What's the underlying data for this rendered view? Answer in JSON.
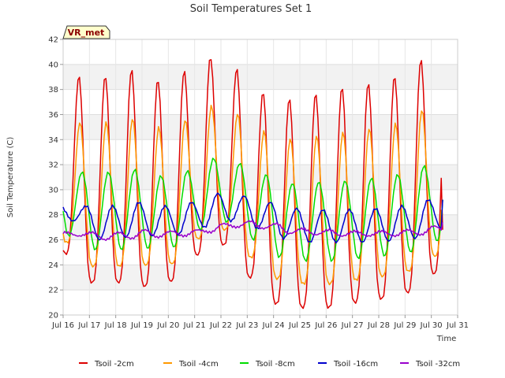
{
  "chart_data": {
    "type": "line",
    "title": "Soil Temperatures Set 1",
    "xlabel": "Time",
    "ylabel": "Soil Temperature (C)",
    "badge": "VR_met",
    "xlim": [
      16,
      31
    ],
    "ylim": [
      20,
      42
    ],
    "x_ticks": [
      "Jul 16",
      "Jul 17",
      "Jul 18",
      "Jul 19",
      "Jul 20",
      "Jul 21",
      "Jul 22",
      "Jul 23",
      "Jul 24",
      "Jul 25",
      "Jul 26",
      "Jul 27",
      "Jul 28",
      "Jul 29",
      "Jul 30",
      "Jul 31"
    ],
    "y_ticks": [
      20,
      22,
      24,
      26,
      28,
      30,
      32,
      34,
      36,
      38,
      40,
      42
    ],
    "grid": true,
    "legend_position": "bottom",
    "x_start_day": 16,
    "x_end_day": 30.42,
    "x_step_days": 0.0625,
    "peaks_at_day_fraction": 0.6,
    "series": [
      {
        "name": "Tsoil -2cm",
        "color": "#dd0000",
        "depth_shape": "sharp",
        "phase_lag_days": 0.0,
        "daily_min": [
          24.9,
          22.6,
          22.6,
          22.3,
          22.7,
          24.8,
          25.6,
          23.0,
          20.9,
          20.6,
          20.6,
          21.0,
          21.3,
          21.8,
          23.3
        ],
        "daily_max": [
          null,
          39.1,
          39.6,
          38.8,
          39.5,
          40.6,
          39.7,
          37.8,
          37.3,
          37.7,
          38.2,
          38.5,
          39.1,
          40.4,
          41.7
        ],
        "end_value": 26.8
      },
      {
        "name": "Tsoil -4cm",
        "color": "#ff9900",
        "depth_shape": "sharp",
        "phase_lag_days": 0.04,
        "daily_min": [
          25.8,
          23.9,
          23.9,
          24.0,
          24.1,
          26.1,
          26.8,
          24.6,
          22.9,
          22.5,
          22.5,
          22.8,
          23.1,
          23.5,
          24.7
        ],
        "daily_max": [
          null,
          35.4,
          35.7,
          35.0,
          35.6,
          36.7,
          36.1,
          34.7,
          34.1,
          34.3,
          34.6,
          34.9,
          35.3,
          36.4,
          37.5
        ],
        "end_value": 28.0
      },
      {
        "name": "Tsoil -8cm",
        "color": "#00dd00",
        "depth_shape": "smooth",
        "phase_lag_days": 0.12,
        "daily_min": [
          26.3,
          25.2,
          25.2,
          25.3,
          25.4,
          26.8,
          27.4,
          26.0,
          24.6,
          24.3,
          24.3,
          24.5,
          24.7,
          25.0,
          25.9
        ],
        "daily_max": [
          null,
          31.4,
          31.6,
          31.1,
          31.5,
          32.5,
          32.1,
          31.2,
          30.5,
          30.6,
          30.7,
          30.9,
          31.2,
          31.9,
          32.7
        ],
        "end_value": 29.2
      },
      {
        "name": "Tsoil -16cm",
        "color": "#0000cc",
        "depth_shape": "smooth",
        "phase_lag_days": 0.28,
        "daily_min": [
          27.5,
          26.0,
          26.2,
          26.3,
          26.4,
          27.0,
          27.5,
          26.9,
          26.1,
          25.8,
          25.8,
          25.8,
          25.9,
          26.1,
          26.9
        ],
        "daily_max": [
          null,
          28.7,
          29.0,
          28.7,
          29.0,
          29.7,
          29.5,
          29.0,
          28.5,
          28.4,
          28.4,
          28.5,
          28.7,
          29.2,
          29.9
        ],
        "end_value": 29.2
      },
      {
        "name": "Tsoil -32cm",
        "color": "#9900cc",
        "depth_shape": "smooth",
        "phase_lag_days": 0.5,
        "daily_min": [
          26.3,
          26.0,
          26.1,
          26.2,
          26.3,
          26.6,
          27.0,
          26.9,
          26.5,
          26.4,
          26.3,
          26.3,
          26.3,
          26.4,
          26.6
        ],
        "daily_max": [
          null,
          26.6,
          26.8,
          26.7,
          26.8,
          27.3,
          27.5,
          27.3,
          26.9,
          26.8,
          26.7,
          26.7,
          26.8,
          27.1,
          27.4
        ],
        "end_value": 27.4
      }
    ]
  }
}
